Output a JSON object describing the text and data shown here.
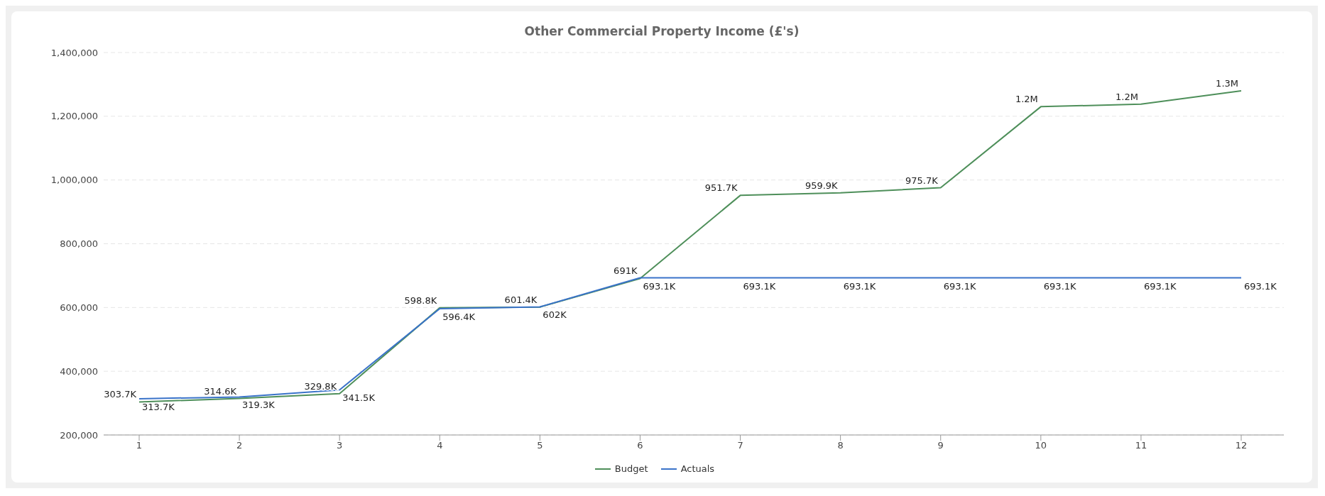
{
  "chart_data": {
    "type": "line",
    "title": "Other Commercial Property Income (£'s)",
    "categories": [
      "1",
      "2",
      "3",
      "4",
      "5",
      "6",
      "7",
      "8",
      "9",
      "10",
      "11",
      "12"
    ],
    "series": [
      {
        "name": "Budget",
        "color": "#4e8f5a",
        "values": [
          303700,
          314600,
          329800,
          598800,
          601400,
          691000,
          951700,
          959900,
          975700,
          1230000,
          1238000,
          1280000
        ],
        "value_labels": [
          "303.7K",
          "314.6K",
          "329.8K",
          "598.8K",
          "601.4K",
          "691K",
          "951.7K",
          "959.9K",
          "975.7K",
          "1.2M",
          "1.2M",
          "1.3M"
        ]
      },
      {
        "name": "Actuals",
        "color": "#3a73c9",
        "values": [
          313700,
          319300,
          341500,
          596400,
          602000,
          693100,
          693100,
          693100,
          693100,
          693100,
          693100,
          693100
        ],
        "value_labels": [
          "313.7K",
          "319.3K",
          "341.5K",
          "596.4K",
          "602K",
          "693.1K",
          "693.1K",
          "693.1K",
          "693.1K",
          "693.1K",
          "693.1K",
          "693.1K"
        ]
      }
    ],
    "ylim": [
      200000,
      1400000
    ],
    "yticks": [
      {
        "value": 200000,
        "label": "200,000"
      },
      {
        "value": 400000,
        "label": "400,000"
      },
      {
        "value": 600000,
        "label": "600,000"
      },
      {
        "value": 800000,
        "label": "800,000"
      },
      {
        "value": 1000000,
        "label": "1,000,000"
      },
      {
        "value": 1200000,
        "label": "1,200,000"
      },
      {
        "value": 1400000,
        "label": "1,400,000"
      }
    ],
    "grid": "y",
    "legend": "bottom",
    "marker": "none",
    "line_style": "solid"
  }
}
